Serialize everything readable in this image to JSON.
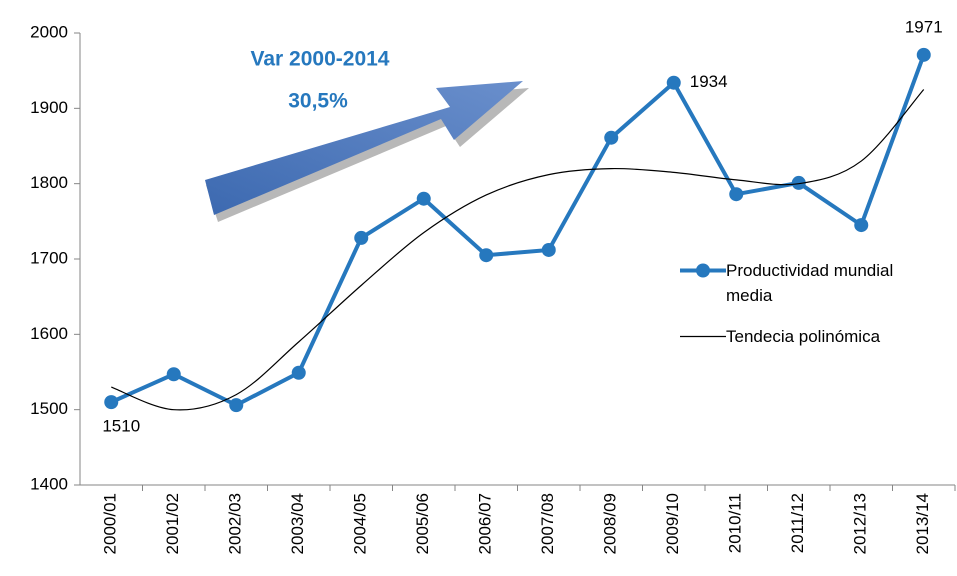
{
  "chart_data": {
    "type": "line",
    "categories": [
      "2000/01",
      "2001/02",
      "2002/03",
      "2003/04",
      "2004/05",
      "2005/06",
      "2006/07",
      "2007/08",
      "2008/09",
      "2009/10",
      "2010/11",
      "2011/12",
      "2012/13",
      "2013/14"
    ],
    "series": [
      {
        "name": "Productividad mundial media",
        "color": "#2678be",
        "values": [
          1510,
          1547,
          1506,
          1549,
          1728,
          1780,
          1705,
          1712,
          1861,
          1934,
          1786,
          1801,
          1745,
          1971
        ],
        "value_labels": [
          "1510",
          null,
          null,
          null,
          null,
          null,
          null,
          null,
          null,
          "1934",
          null,
          null,
          null,
          "1971"
        ]
      },
      {
        "name": "Tendecia polinómica",
        "color": "#000000",
        "smooth": true,
        "values": [
          1530,
          1500,
          1520,
          1590,
          1665,
          1735,
          1785,
          1812,
          1820,
          1815,
          1805,
          1800,
          1830,
          1925
        ]
      }
    ],
    "ylim": [
      1400,
      2000
    ],
    "yticks": [
      1400,
      1500,
      1600,
      1700,
      1800,
      1900,
      2000
    ],
    "annotations": [
      "Var 2000-2014",
      "30,5%"
    ],
    "grid": false
  }
}
